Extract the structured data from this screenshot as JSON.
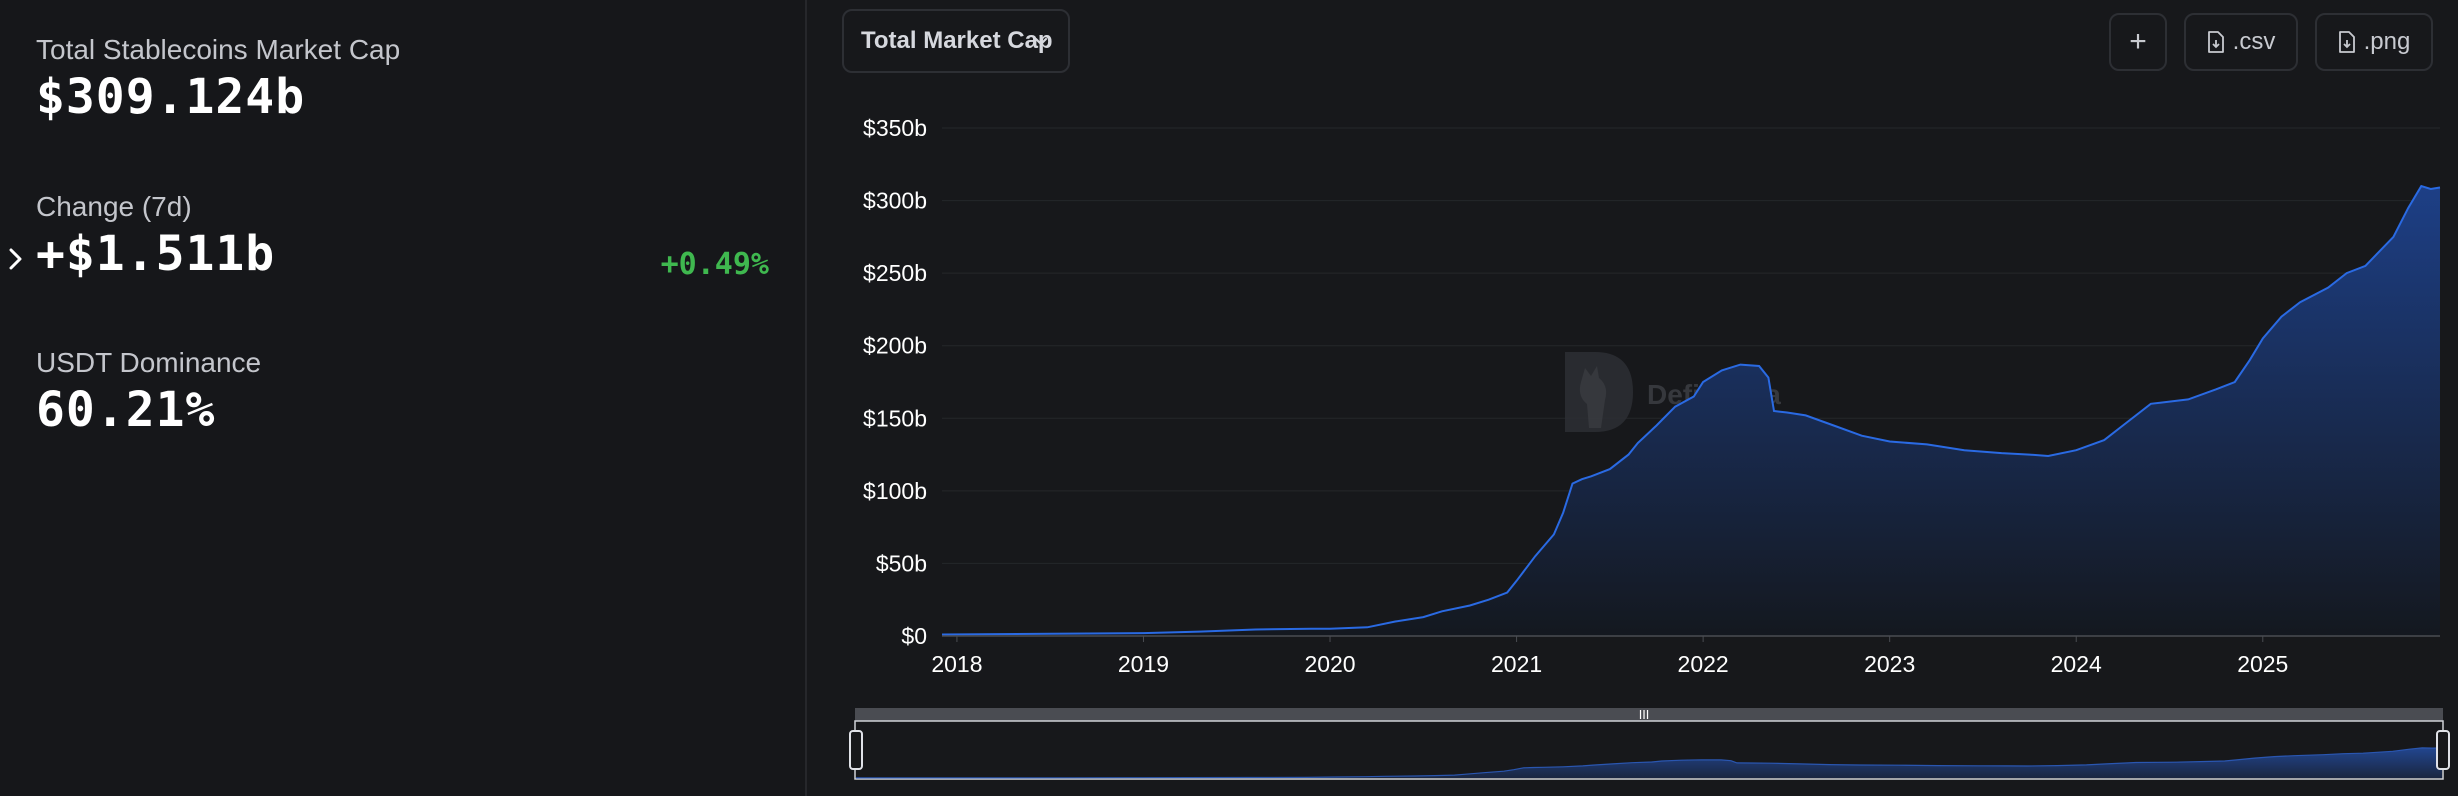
{
  "stats": {
    "total_label": "Total Stablecoins Market Cap",
    "total_value": "$309.124b",
    "change_label": "Change (7d)",
    "change_value": "+$1.511b",
    "change_pct": "+0.49%",
    "dominance_label": "USDT Dominance",
    "dominance_value": "60.21%"
  },
  "controls": {
    "metric_select": "Total Market Cap",
    "add_button": "+",
    "csv_button": ".csv",
    "png_button": ".png"
  },
  "watermark": {
    "text": "DefiLlama"
  },
  "colors": {
    "line": "#2a6ae3",
    "area_top": "#1d3f86",
    "area_bottom": "#14181f",
    "positive": "#3fb84f"
  },
  "chart_data": {
    "type": "area",
    "title": "",
    "xlabel": "",
    "ylabel": "",
    "x_ticks": [
      "2018",
      "2019",
      "2020",
      "2021",
      "2022",
      "2023",
      "2024",
      "2025"
    ],
    "y_ticks": [
      "$0",
      "$50b",
      "$100b",
      "$150b",
      "$200b",
      "$250b",
      "$300b",
      "$350b"
    ],
    "xlim": [
      2017.92,
      2025.95
    ],
    "ylim": [
      0,
      350
    ],
    "unit": "billion USD",
    "grid": true,
    "legend": "none",
    "series": [
      {
        "x": [
          2017.92,
          2018.5,
          2019.0,
          2019.3,
          2019.6,
          2019.9,
          2020.0,
          2020.2,
          2020.35,
          2020.5,
          2020.6,
          2020.75,
          2020.85,
          2020.95,
          2021.0,
          2021.1,
          2021.2,
          2021.25,
          2021.3,
          2021.35,
          2021.4,
          2021.5,
          2021.6,
          2021.65,
          2021.75,
          2021.85,
          2021.95,
          2022.0,
          2022.1,
          2022.2,
          2022.3,
          2022.35,
          2022.38,
          2022.45,
          2022.55,
          2022.7,
          2022.85,
          2023.0,
          2023.2,
          2023.4,
          2023.6,
          2023.75,
          2023.85,
          2024.0,
          2024.15,
          2024.25,
          2024.4,
          2024.6,
          2024.75,
          2024.85,
          2024.93,
          2025.0,
          2025.1,
          2025.2,
          2025.35,
          2025.45,
          2025.55,
          2025.7,
          2025.78,
          2025.85,
          2025.9,
          2025.95
        ],
        "values": [
          1,
          1.5,
          2,
          3,
          4.5,
          5,
          5,
          6,
          10,
          13,
          17,
          21,
          25,
          30,
          38,
          55,
          70,
          85,
          105,
          108,
          110,
          115,
          125,
          133,
          145,
          158,
          165,
          175,
          183,
          187,
          186,
          178,
          155,
          154,
          152,
          145,
          138,
          134,
          132,
          128,
          126,
          125,
          124,
          128,
          135,
          145,
          160,
          163,
          170,
          175,
          190,
          205,
          220,
          230,
          240,
          250,
          255,
          275,
          295,
          310,
          308,
          309
        ]
      }
    ]
  }
}
